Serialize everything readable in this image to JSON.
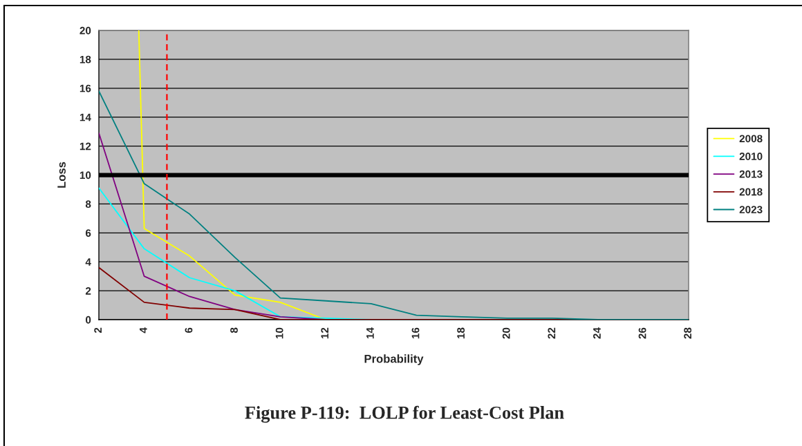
{
  "chart_data": {
    "type": "line",
    "xlabel": "Probability",
    "ylabel": "Loss",
    "annotations": [
      "Figure P-119:  LOLP for Least-Cost Plan"
    ],
    "x": [
      2,
      4,
      6,
      8,
      10,
      12,
      14,
      16,
      18,
      20,
      22,
      24,
      26,
      28
    ],
    "series": [
      {
        "name": "2008",
        "color": "#ffff00",
        "x": [
          3.76,
          4,
          6,
          8,
          10,
          12
        ],
        "values": [
          20,
          6.3,
          4.4,
          1.7,
          1.2,
          0
        ]
      },
      {
        "name": "2010",
        "color": "#00ffff",
        "values": [
          9.1,
          4.9,
          2.9,
          2.0,
          0.2,
          0.1,
          0,
          0,
          null,
          null,
          null,
          null,
          null,
          null
        ]
      },
      {
        "name": "2013",
        "color": "#800080",
        "values": [
          12.9,
          3.0,
          1.6,
          0.7,
          0.2,
          0,
          null,
          null,
          null,
          null,
          null,
          null,
          null,
          null
        ]
      },
      {
        "name": "2018",
        "color": "#800000",
        "values": [
          3.6,
          1.2,
          0.8,
          0.7,
          0,
          0,
          0,
          0,
          0,
          0,
          0,
          0,
          null,
          null
        ]
      },
      {
        "name": "2023",
        "color": "#008080",
        "values": [
          15.8,
          9.4,
          7.3,
          4.3,
          1.5,
          1.3,
          1.1,
          0.3,
          0.2,
          0.1,
          0.1,
          0,
          0,
          0
        ]
      }
    ],
    "xlim": [
      2,
      28
    ],
    "xticks": [
      2,
      4,
      6,
      8,
      10,
      12,
      14,
      16,
      18,
      20,
      22,
      24,
      26,
      28
    ],
    "ylim": [
      0,
      20
    ],
    "yticks": [
      0,
      2,
      4,
      6,
      8,
      10,
      12,
      14,
      16,
      18,
      20
    ],
    "grid": "y",
    "legend": "right",
    "marker": "none",
    "line_style": "solid",
    "ref_lines": [
      {
        "axis": "y",
        "value": 10,
        "color": "#000000",
        "line_style": "solid"
      },
      {
        "axis": "x",
        "value": 5,
        "color": "#ff0000",
        "line_style": "dashed"
      }
    ]
  }
}
